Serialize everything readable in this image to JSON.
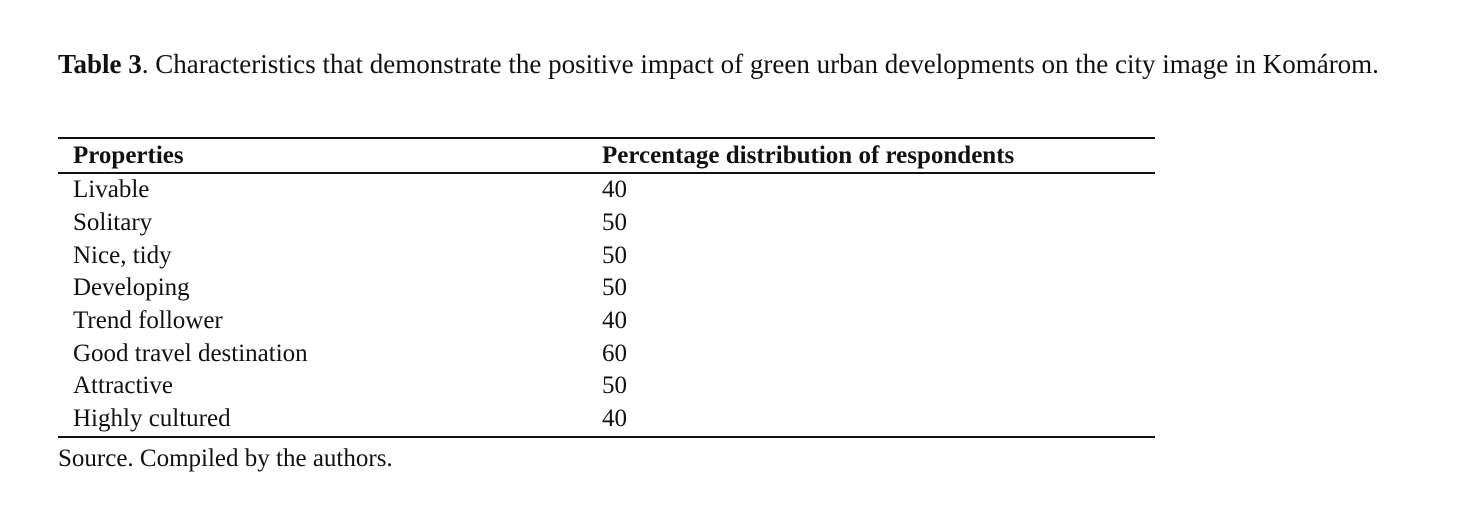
{
  "caption": {
    "label": "Table 3",
    "text": ". Characteristics that demonstrate the positive impact of green urban developments on the city image in Komárom."
  },
  "table": {
    "header": [
      "Properties",
      "Percentage distribution of respondents"
    ],
    "rows": [
      [
        "Livable",
        40
      ],
      [
        "Solitary",
        50
      ],
      [
        "Nice, tidy",
        50
      ],
      [
        "Developing",
        50
      ],
      [
        "Trend follower",
        40
      ],
      [
        "Good travel destination",
        60
      ],
      [
        "Attractive",
        50
      ],
      [
        "Highly cultured",
        40
      ]
    ]
  },
  "source": "Source. Compiled by the authors."
}
